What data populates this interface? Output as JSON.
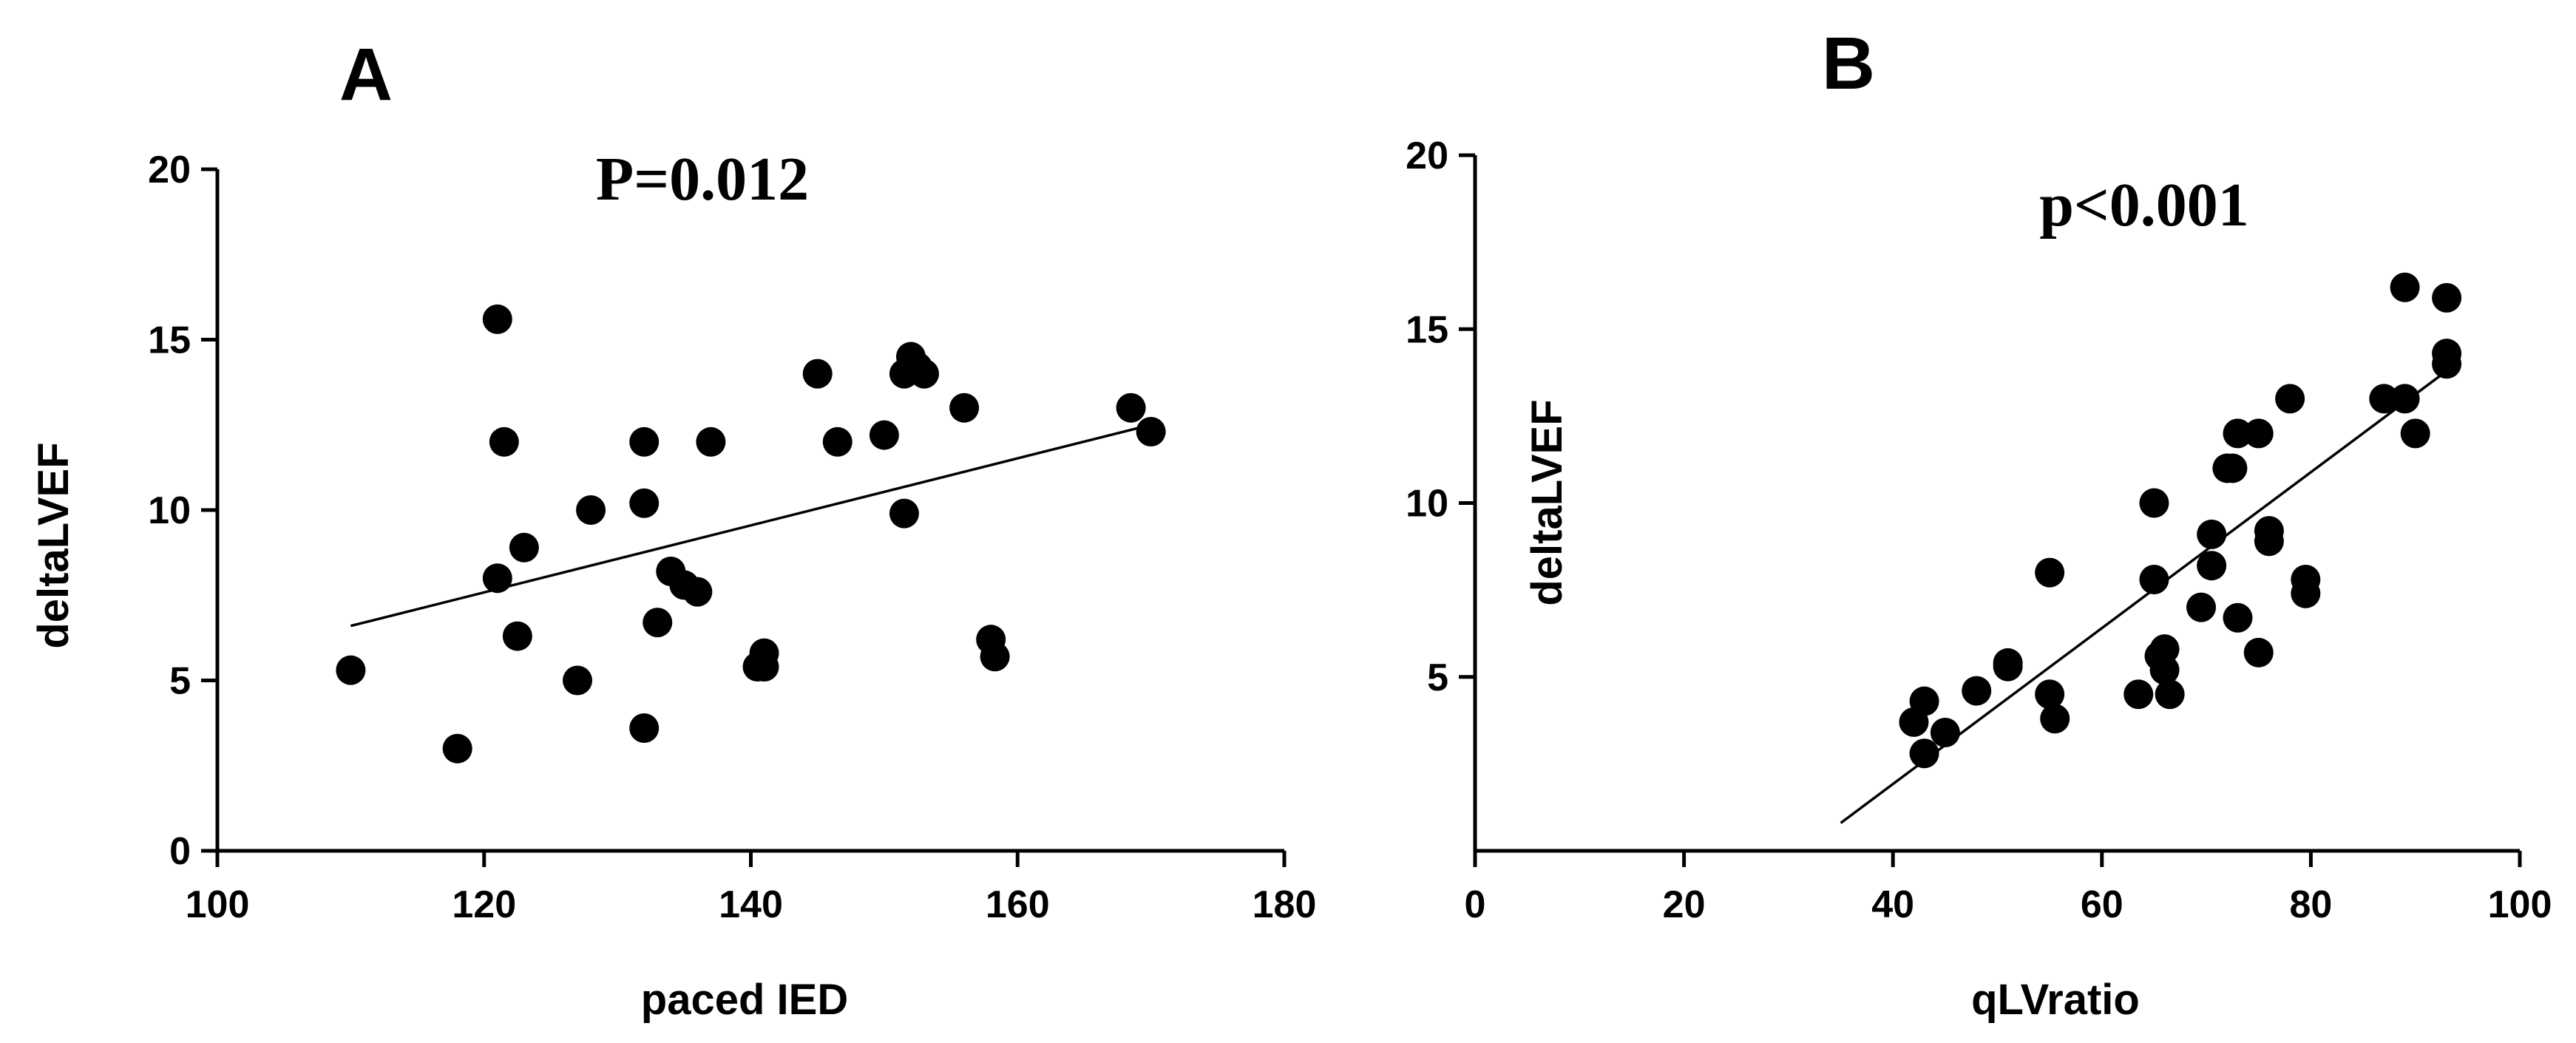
{
  "chart_data": [
    {
      "type": "scatter",
      "panel_label": "A",
      "annotation": "P=0.012",
      "xlabel": "paced IED",
      "ylabel": "deltaLVEF",
      "xlim": [
        100,
        180
      ],
      "ylim": [
        0,
        20
      ],
      "xticks": [
        100,
        120,
        140,
        160,
        180
      ],
      "yticks": [
        0,
        5,
        10,
        15,
        20
      ],
      "grid": false,
      "points": [
        {
          "x": 110,
          "y": 5.3
        },
        {
          "x": 118,
          "y": 3.0
        },
        {
          "x": 121,
          "y": 15.6
        },
        {
          "x": 121.5,
          "y": 12.0
        },
        {
          "x": 121,
          "y": 8.0
        },
        {
          "x": 123,
          "y": 8.9
        },
        {
          "x": 122.5,
          "y": 6.3
        },
        {
          "x": 127,
          "y": 5.0
        },
        {
          "x": 128,
          "y": 10.0
        },
        {
          "x": 132,
          "y": 12.0
        },
        {
          "x": 132,
          "y": 10.2
        },
        {
          "x": 132,
          "y": 3.6
        },
        {
          "x": 133,
          "y": 6.7
        },
        {
          "x": 134,
          "y": 8.2
        },
        {
          "x": 135,
          "y": 7.8
        },
        {
          "x": 136,
          "y": 7.6
        },
        {
          "x": 137,
          "y": 12.0
        },
        {
          "x": 140.5,
          "y": 5.4
        },
        {
          "x": 141,
          "y": 5.8
        },
        {
          "x": 141,
          "y": 5.4
        },
        {
          "x": 145,
          "y": 14.0
        },
        {
          "x": 146.5,
          "y": 12.0
        },
        {
          "x": 150,
          "y": 12.2
        },
        {
          "x": 151.5,
          "y": 9.9
        },
        {
          "x": 151.5,
          "y": 14.0
        },
        {
          "x": 152,
          "y": 14.5
        },
        {
          "x": 152.5,
          "y": 14.2
        },
        {
          "x": 153,
          "y": 14.0
        },
        {
          "x": 156,
          "y": 13.0
        },
        {
          "x": 158,
          "y": 6.2
        },
        {
          "x": 158.3,
          "y": 5.7
        },
        {
          "x": 168.5,
          "y": 13.0
        },
        {
          "x": 170,
          "y": 12.3
        }
      ],
      "fit_line": {
        "x": [
          110,
          170
        ],
        "y": [
          6.6,
          12.5
        ]
      }
    },
    {
      "type": "scatter",
      "panel_label": "B",
      "annotation": "p<0.001",
      "xlabel": "qLVratio",
      "ylabel": "deltaLVEF",
      "xlim": [
        0,
        100
      ],
      "ylim": [
        0,
        20
      ],
      "xticks": [
        0,
        20,
        40,
        60,
        80,
        100
      ],
      "yticks": [
        5,
        10,
        15,
        20
      ],
      "grid": false,
      "points": [
        {
          "x": 42,
          "y": 3.7
        },
        {
          "x": 43,
          "y": 4.3
        },
        {
          "x": 43,
          "y": 2.8
        },
        {
          "x": 45,
          "y": 3.4
        },
        {
          "x": 48,
          "y": 4.6
        },
        {
          "x": 51,
          "y": 5.3
        },
        {
          "x": 51,
          "y": 5.4
        },
        {
          "x": 55,
          "y": 8.0
        },
        {
          "x": 55,
          "y": 4.5
        },
        {
          "x": 55.5,
          "y": 3.8
        },
        {
          "x": 63.5,
          "y": 4.5
        },
        {
          "x": 65,
          "y": 10.0
        },
        {
          "x": 65,
          "y": 7.8
        },
        {
          "x": 65.5,
          "y": 5.6
        },
        {
          "x": 66,
          "y": 5.8
        },
        {
          "x": 66,
          "y": 5.2
        },
        {
          "x": 66.5,
          "y": 4.5
        },
        {
          "x": 69.5,
          "y": 7.0
        },
        {
          "x": 70.5,
          "y": 9.1
        },
        {
          "x": 70.5,
          "y": 8.2
        },
        {
          "x": 72,
          "y": 11.0
        },
        {
          "x": 72.5,
          "y": 11.0
        },
        {
          "x": 73,
          "y": 12.0
        },
        {
          "x": 73,
          "y": 6.7
        },
        {
          "x": 75,
          "y": 12.0
        },
        {
          "x": 75,
          "y": 5.7
        },
        {
          "x": 76,
          "y": 9.2
        },
        {
          "x": 76,
          "y": 8.9
        },
        {
          "x": 78,
          "y": 13.0
        },
        {
          "x": 79.5,
          "y": 7.8
        },
        {
          "x": 79.5,
          "y": 7.4
        },
        {
          "x": 87,
          "y": 13.0
        },
        {
          "x": 89,
          "y": 16.2
        },
        {
          "x": 89,
          "y": 13.0
        },
        {
          "x": 90,
          "y": 12.0
        },
        {
          "x": 93,
          "y": 15.9
        },
        {
          "x": 93,
          "y": 14.3
        },
        {
          "x": 93,
          "y": 14.0
        }
      ],
      "fit_line": {
        "x": [
          35,
          93
        ],
        "y": [
          0.8,
          13.8
        ]
      }
    }
  ]
}
